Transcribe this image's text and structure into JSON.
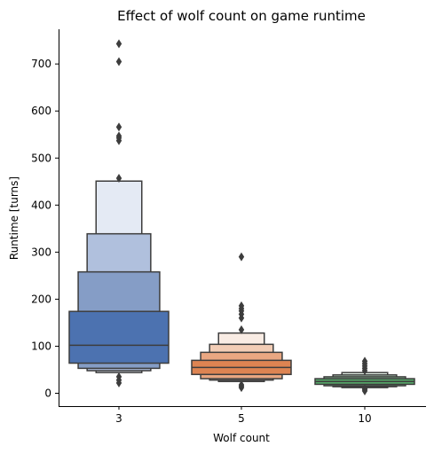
{
  "chart_data": {
    "type": "boxen",
    "title": "Effect of wolf count on game runtime",
    "xlabel": "Wolf count",
    "ylabel": "Runtime [turns]",
    "categories": [
      "3",
      "5",
      "10"
    ],
    "ylim": [
      -20,
      780
    ],
    "yticks": [
      0,
      100,
      200,
      300,
      400,
      500,
      600,
      700
    ],
    "ytick_labels": [
      "0",
      "100",
      "200",
      "300",
      "400",
      "500",
      "600",
      "700"
    ],
    "grid": false,
    "series": [
      {
        "category": "3",
        "color": "#4c72b0",
        "median": 102,
        "boxes": [
          {
            "low": 64,
            "high": 174,
            "shade": "#4c72b0"
          },
          {
            "low": 53,
            "high": 258,
            "shade": "#859dc6"
          },
          {
            "low": 48,
            "high": 339,
            "shade": "#b0c0dd"
          },
          {
            "low": 44,
            "high": 451,
            "shade": "#e4eaf4"
          }
        ],
        "outliers": [
          22,
          28,
          35,
          457,
          537,
          543,
          547,
          566,
          705,
          743
        ]
      },
      {
        "category": "5",
        "color": "#dd8452",
        "median": 55,
        "boxes": [
          {
            "low": 40,
            "high": 70,
            "shade": "#dd8452"
          },
          {
            "low": 31,
            "high": 87,
            "shade": "#e9a782"
          },
          {
            "low": 28,
            "high": 104,
            "shade": "#f2cdb6"
          },
          {
            "low": 25,
            "high": 128,
            "shade": "#f9ece4"
          }
        ],
        "outliers": [
          12,
          15,
          18,
          135,
          160,
          168,
          175,
          180,
          186,
          290
        ]
      },
      {
        "category": "10",
        "color": "#55a868",
        "median": 25,
        "boxes": [
          {
            "low": 19,
            "high": 31,
            "shade": "#55a868"
          },
          {
            "low": 16,
            "high": 35,
            "shade": "#8bc196"
          },
          {
            "low": 14,
            "high": 39,
            "shade": "#bcdcc3"
          },
          {
            "low": 12,
            "high": 44,
            "shade": "#e6f2e9"
          }
        ],
        "outliers": [
          5,
          8,
          10,
          48,
          53,
          58,
          63,
          68
        ]
      }
    ]
  }
}
